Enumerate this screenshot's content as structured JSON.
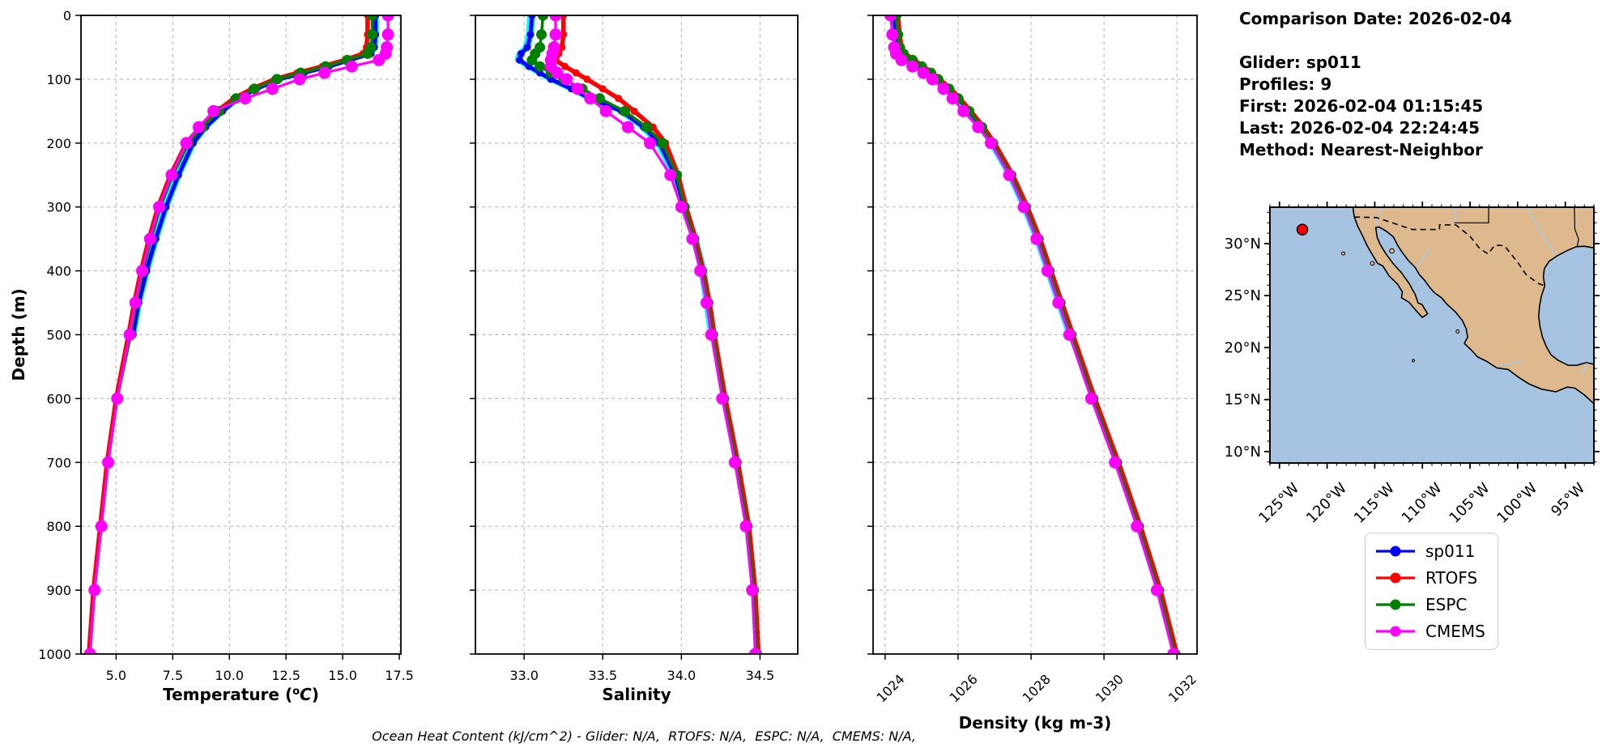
{
  "info_panel": {
    "date_line": "Comparison Date: 2026-02-04",
    "lines": [
      "Glider: sp011",
      "Profiles: 9",
      "First: 2026-02-04 01:15:45",
      "Last: 2026-02-04 22:24:45",
      "Method: Nearest-Neighbor"
    ]
  },
  "legend": {
    "items": [
      {
        "label": "sp011",
        "color": "#0000ff"
      },
      {
        "label": "RTOFS",
        "color": "#ff0000"
      },
      {
        "label": "ESPC",
        "color": "#008000"
      },
      {
        "label": "CMEMS",
        "color": "#ff00ff"
      }
    ]
  },
  "footer": "Ocean Heat Content (kJ/cm^2) - Glider: N/A,  RTOFS: N/A,  ESPC: N/A,  CMEMS: N/A,",
  "chart_data": [
    {
      "type": "line",
      "id": "temperature-profile",
      "xlabel": "Temperature (°C)",
      "ylabel": "Depth (m)",
      "xlim": [
        3.45,
        17.57
      ],
      "xticks": [
        5.0,
        7.5,
        10.0,
        12.5,
        15.0,
        17.5
      ],
      "xtick_labels": [
        "5.0",
        "7.5",
        "10.0",
        "12.5",
        "15.0",
        "17.5"
      ],
      "rotate_xtick_labels": false,
      "ylim": [
        0,
        1000
      ],
      "yticks": [
        0,
        100,
        200,
        300,
        400,
        500,
        600,
        700,
        800,
        900,
        1000
      ],
      "show_depth_labels": true,
      "grid": true,
      "raw_overlay_color": "#00ffff",
      "depths_m": [
        0,
        30,
        50,
        60,
        70,
        80,
        90,
        100,
        115,
        130,
        150,
        175,
        200,
        250,
        300,
        350,
        400,
        450,
        500,
        600,
        700,
        800,
        900,
        1000
      ],
      "series": [
        {
          "name": "sp011",
          "color": "#0000ff",
          "values": [
            16.45,
            16.45,
            16.4,
            16.25,
            15.3,
            14.4,
            13.3,
            12.2,
            11.2,
            10.4,
            9.7,
            8.95,
            8.4,
            7.75,
            7.2,
            6.75,
            6.35,
            6.0,
            5.75,
            null,
            null,
            null,
            null,
            null
          ]
        },
        {
          "name": "RTOFS",
          "color": "#ff0000",
          "values": [
            16.1,
            16.1,
            16.05,
            15.9,
            15.1,
            14.1,
            13.0,
            12.0,
            11.0,
            10.2,
            9.45,
            8.7,
            8.1,
            7.4,
            6.85,
            6.45,
            6.1,
            5.8,
            5.55,
            5.0,
            4.6,
            4.3,
            4.0,
            3.8
          ]
        },
        {
          "name": "ESPC",
          "color": "#008000",
          "values": [
            16.3,
            16.3,
            16.25,
            16.1,
            15.2,
            14.25,
            13.15,
            12.1,
            11.1,
            10.3,
            9.55,
            8.8,
            8.2,
            7.5,
            6.95,
            6.55,
            6.2,
            5.9,
            5.65,
            5.05,
            4.65,
            4.35,
            4.05,
            3.85
          ]
        },
        {
          "name": "CMEMS",
          "color": "#ff00ff",
          "values": [
            17.0,
            17.0,
            16.95,
            16.9,
            16.6,
            15.4,
            14.2,
            13.1,
            11.9,
            10.7,
            9.3,
            8.65,
            8.1,
            7.45,
            6.9,
            6.5,
            6.15,
            5.85,
            5.6,
            5.05,
            4.65,
            4.35,
            4.05,
            3.85
          ]
        }
      ]
    },
    {
      "type": "line",
      "id": "salinity-profile",
      "xlabel": "Salinity",
      "ylabel": "",
      "xlim": [
        32.69,
        34.74
      ],
      "xticks": [
        33.0,
        33.5,
        34.0,
        34.5
      ],
      "xtick_labels": [
        "33.0",
        "33.5",
        "34.0",
        "34.5"
      ],
      "rotate_xtick_labels": false,
      "ylim": [
        0,
        1000
      ],
      "yticks": [
        0,
        100,
        200,
        300,
        400,
        500,
        600,
        700,
        800,
        900,
        1000
      ],
      "show_depth_labels": false,
      "grid": true,
      "raw_overlay_color": "#00ffff",
      "depths_m": [
        0,
        30,
        50,
        60,
        70,
        80,
        90,
        100,
        115,
        130,
        150,
        175,
        200,
        250,
        300,
        350,
        400,
        450,
        500,
        600,
        700,
        800,
        900,
        1000
      ],
      "series": [
        {
          "name": "sp011",
          "color": "#0000ff",
          "values": [
            33.05,
            33.04,
            33.02,
            32.98,
            32.97,
            33.03,
            33.1,
            33.17,
            33.3,
            33.42,
            33.62,
            33.76,
            33.86,
            33.96,
            34.02,
            34.09,
            34.14,
            34.17,
            34.2,
            null,
            null,
            null,
            null,
            null
          ]
        },
        {
          "name": "RTOFS",
          "color": "#ff0000",
          "values": [
            33.25,
            33.25,
            33.24,
            33.22,
            33.2,
            33.26,
            33.33,
            33.4,
            33.5,
            33.6,
            33.7,
            33.82,
            33.9,
            33.98,
            34.03,
            34.09,
            34.14,
            34.18,
            34.21,
            34.28,
            34.36,
            34.43,
            34.47,
            34.49
          ]
        },
        {
          "name": "ESPC",
          "color": "#008000",
          "values": [
            33.12,
            33.11,
            33.1,
            33.07,
            33.05,
            33.1,
            33.17,
            33.25,
            33.37,
            33.48,
            33.64,
            33.78,
            33.88,
            33.97,
            34.02,
            34.08,
            34.13,
            34.17,
            34.2,
            34.27,
            34.35,
            34.42,
            34.46,
            34.48
          ]
        },
        {
          "name": "CMEMS",
          "color": "#ff00ff",
          "values": [
            33.2,
            33.2,
            33.19,
            33.18,
            33.17,
            33.17,
            33.21,
            33.27,
            33.34,
            33.42,
            33.52,
            33.66,
            33.8,
            33.93,
            34.0,
            34.07,
            34.12,
            34.16,
            34.19,
            34.26,
            34.34,
            34.41,
            34.45,
            34.47
          ]
        }
      ]
    },
    {
      "type": "line",
      "id": "density-profile",
      "xlabel": "Density (kg m-3)",
      "ylabel": "",
      "xlim": [
        1023.67,
        1032.55
      ],
      "xticks": [
        1024,
        1026,
        1028,
        1030,
        1032
      ],
      "xtick_labels": [
        "1024",
        "1026",
        "1028",
        "1030",
        "1032"
      ],
      "rotate_xtick_labels": true,
      "ylim": [
        0,
        1000
      ],
      "yticks": [
        0,
        100,
        200,
        300,
        400,
        500,
        600,
        700,
        800,
        900,
        1000
      ],
      "show_depth_labels": false,
      "grid": true,
      "raw_overlay_color": "#00ffff",
      "depths_m": [
        0,
        30,
        50,
        60,
        70,
        80,
        90,
        100,
        115,
        130,
        150,
        175,
        200,
        250,
        300,
        350,
        400,
        450,
        500,
        600,
        700,
        800,
        900,
        1000
      ],
      "series": [
        {
          "name": "sp011",
          "color": "#0000ff",
          "values": [
            1024.25,
            1024.3,
            1024.35,
            1024.45,
            1024.7,
            1024.95,
            1025.2,
            1025.45,
            1025.75,
            1026.0,
            1026.3,
            1026.65,
            1026.95,
            1027.45,
            1027.85,
            1028.2,
            1028.5,
            1028.8,
            1029.1,
            null,
            null,
            null,
            null,
            null
          ]
        },
        {
          "name": "RTOFS",
          "color": "#ff0000",
          "values": [
            1024.35,
            1024.4,
            1024.45,
            1024.55,
            1024.8,
            1025.05,
            1025.3,
            1025.5,
            1025.8,
            1026.05,
            1026.35,
            1026.7,
            1027.0,
            1027.5,
            1027.9,
            1028.25,
            1028.55,
            1028.85,
            1029.15,
            1029.75,
            1030.4,
            1031.0,
            1031.55,
            1032.0
          ]
        },
        {
          "name": "ESPC",
          "color": "#008000",
          "values": [
            1024.3,
            1024.35,
            1024.4,
            1024.5,
            1024.75,
            1025.0,
            1025.25,
            1025.45,
            1025.75,
            1026.0,
            1026.3,
            1026.65,
            1026.95,
            1027.45,
            1027.85,
            1028.2,
            1028.5,
            1028.8,
            1029.1,
            1029.7,
            1030.35,
            1030.95,
            1031.5,
            1031.95
          ]
        },
        {
          "name": "CMEMS",
          "color": "#ff00ff",
          "values": [
            1024.15,
            1024.2,
            1024.25,
            1024.3,
            1024.45,
            1024.75,
            1025.05,
            1025.3,
            1025.6,
            1025.85,
            1026.15,
            1026.55,
            1026.9,
            1027.4,
            1027.8,
            1028.15,
            1028.45,
            1028.75,
            1029.05,
            1029.65,
            1030.3,
            1030.9,
            1031.45,
            1031.9
          ]
        }
      ]
    },
    {
      "type": "map",
      "id": "glider-location-map",
      "extent": {
        "lon": [
          -126,
          -92
        ],
        "lat": [
          8.9,
          33.5
        ]
      },
      "lon_ticks": [
        {
          "value": -125,
          "label": "125°W"
        },
        {
          "value": -120,
          "label": "120°W"
        },
        {
          "value": -115,
          "label": "115°W"
        },
        {
          "value": -110,
          "label": "110°W"
        },
        {
          "value": -105,
          "label": "105°W"
        },
        {
          "value": -100,
          "label": "100°W"
        },
        {
          "value": -95,
          "label": "95°W"
        }
      ],
      "lat_ticks": [
        {
          "value": 30,
          "label": "30°N"
        },
        {
          "value": 25,
          "label": "25°N"
        },
        {
          "value": 20,
          "label": "20°N"
        },
        {
          "value": 15,
          "label": "15°N"
        },
        {
          "value": 10,
          "label": "10°N"
        }
      ],
      "glider_marker": {
        "lon": -122.6,
        "lat": 31.35,
        "color": "#ff0000"
      },
      "ocean_color": "#a7c3e2",
      "land_color": "#ddb98d"
    }
  ]
}
